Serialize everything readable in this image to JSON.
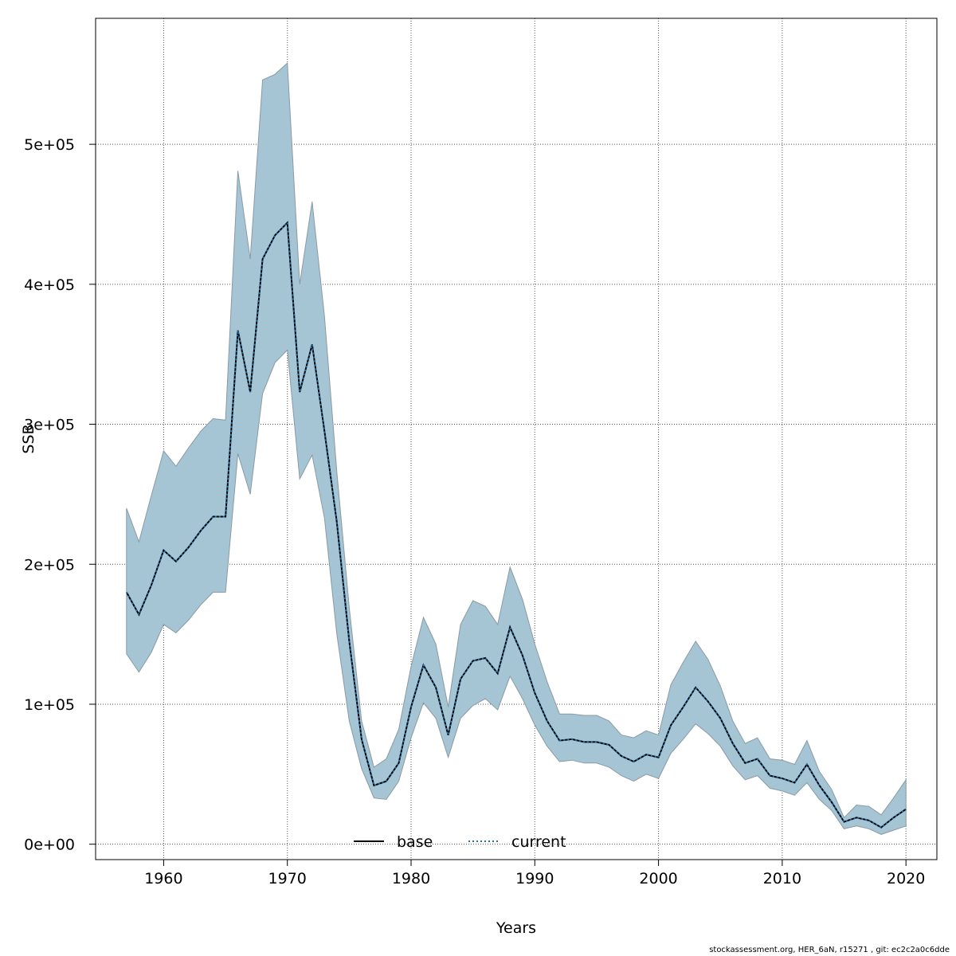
{
  "chart_data": {
    "type": "area",
    "xlabel": "Years",
    "ylabel": "SSB",
    "xlim": [
      1954.5,
      2022.5
    ],
    "ylim": [
      -11000,
      590000
    ],
    "x_ticks": [
      1960,
      1970,
      1980,
      1990,
      2000,
      2010,
      2020
    ],
    "x_tick_labels": [
      "1960",
      "1970",
      "1980",
      "1990",
      "2000",
      "2010",
      "2020"
    ],
    "y_ticks": [
      0,
      100000,
      200000,
      300000,
      400000,
      500000
    ],
    "y_tick_labels": [
      "0e+00",
      "1e+05",
      "2e+05",
      "3e+05",
      "4e+05",
      "5e+05"
    ],
    "grid": true,
    "legend": {
      "position": "bottom-center",
      "entries": [
        {
          "label": "base",
          "color": "#000000",
          "style": "solid"
        },
        {
          "label": "current",
          "color": "#1f6fa8",
          "style": "dotted"
        }
      ]
    },
    "band_color": "#a5c4d4",
    "x": [
      1957,
      1958,
      1959,
      1960,
      1961,
      1962,
      1963,
      1964,
      1965,
      1966,
      1967,
      1968,
      1969,
      1970,
      1971,
      1972,
      1973,
      1974,
      1975,
      1976,
      1977,
      1978,
      1979,
      1980,
      1981,
      1982,
      1983,
      1984,
      1985,
      1986,
      1987,
      1988,
      1989,
      1990,
      1991,
      1992,
      1993,
      1994,
      1995,
      1996,
      1997,
      1998,
      1999,
      2000,
      2001,
      2002,
      2003,
      2004,
      2005,
      2006,
      2007,
      2008,
      2009,
      2010,
      2011,
      2012,
      2013,
      2014,
      2015,
      2016,
      2017,
      2018,
      2019,
      2020
    ],
    "series": [
      {
        "name": "base",
        "values": [
          180000,
          164000,
          185000,
          210000,
          202000,
          212000,
          224000,
          234000,
          234000,
          367000,
          323000,
          418000,
          435000,
          444000,
          323000,
          357000,
          295000,
          230000,
          145000,
          75000,
          42000,
          45000,
          58000,
          98000,
          128000,
          112000,
          78000,
          118000,
          131000,
          133000,
          122000,
          155000,
          135000,
          108000,
          88000,
          74000,
          75000,
          73000,
          73000,
          71000,
          63000,
          59000,
          64000,
          62000,
          85000,
          98000,
          112000,
          102000,
          90000,
          72000,
          58000,
          61000,
          49000,
          47000,
          44000,
          57000,
          42000,
          30000,
          16000,
          19000,
          17000,
          12000,
          19000,
          25000
        ]
      },
      {
        "name": "current",
        "values": [
          180000,
          164000,
          185000,
          210000,
          202000,
          212000,
          224000,
          234000,
          234000,
          367000,
          323000,
          418000,
          435000,
          444000,
          323000,
          357000,
          295000,
          230000,
          145000,
          75000,
          42000,
          45000,
          58000,
          98000,
          128000,
          112000,
          78000,
          118000,
          131000,
          133000,
          122000,
          155000,
          135000,
          108000,
          88000,
          74000,
          75000,
          73000,
          73000,
          71000,
          63000,
          59000,
          64000,
          62000,
          85000,
          98000,
          112000,
          102000,
          90000,
          72000,
          58000,
          61000,
          49000,
          47000,
          44000,
          57000,
          42000,
          30000,
          16000,
          19000,
          17000,
          12000,
          19000,
          25000
        ]
      }
    ],
    "upper": [
      240000,
      216000,
      249000,
      281000,
      270000,
      283000,
      295000,
      304000,
      303000,
      481000,
      418000,
      546000,
      550000,
      558000,
      400000,
      459000,
      377000,
      266000,
      169000,
      88000,
      55000,
      61000,
      82000,
      127000,
      162000,
      143000,
      98000,
      157000,
      174000,
      170000,
      157000,
      198000,
      175000,
      143000,
      116000,
      93000,
      93000,
      92000,
      92000,
      88000,
      78000,
      76000,
      81000,
      78000,
      114000,
      130000,
      145000,
      132000,
      113000,
      88000,
      72000,
      76000,
      61000,
      60000,
      57000,
      74000,
      52000,
      39000,
      19000,
      28000,
      27000,
      21000,
      33000,
      46000
    ],
    "lower": [
      136000,
      123000,
      137000,
      157000,
      151000,
      160000,
      171000,
      180000,
      180000,
      279000,
      250000,
      322000,
      344000,
      353000,
      261000,
      278000,
      233000,
      150000,
      88000,
      54000,
      33000,
      32000,
      45000,
      76000,
      101000,
      90000,
      62000,
      90000,
      99000,
      104000,
      96000,
      120000,
      104000,
      85000,
      70000,
      59000,
      60000,
      58000,
      58000,
      55000,
      49000,
      45000,
      50000,
      47000,
      65000,
      75000,
      86000,
      79000,
      70000,
      56000,
      46000,
      49000,
      40000,
      38000,
      35000,
      44000,
      32000,
      24000,
      11000,
      13000,
      11000,
      7000,
      10000,
      13000
    ]
  },
  "footer": {
    "text": "stockassessment.org, HER_6aN, r15271 , git: ec2c2a0c6dde"
  }
}
